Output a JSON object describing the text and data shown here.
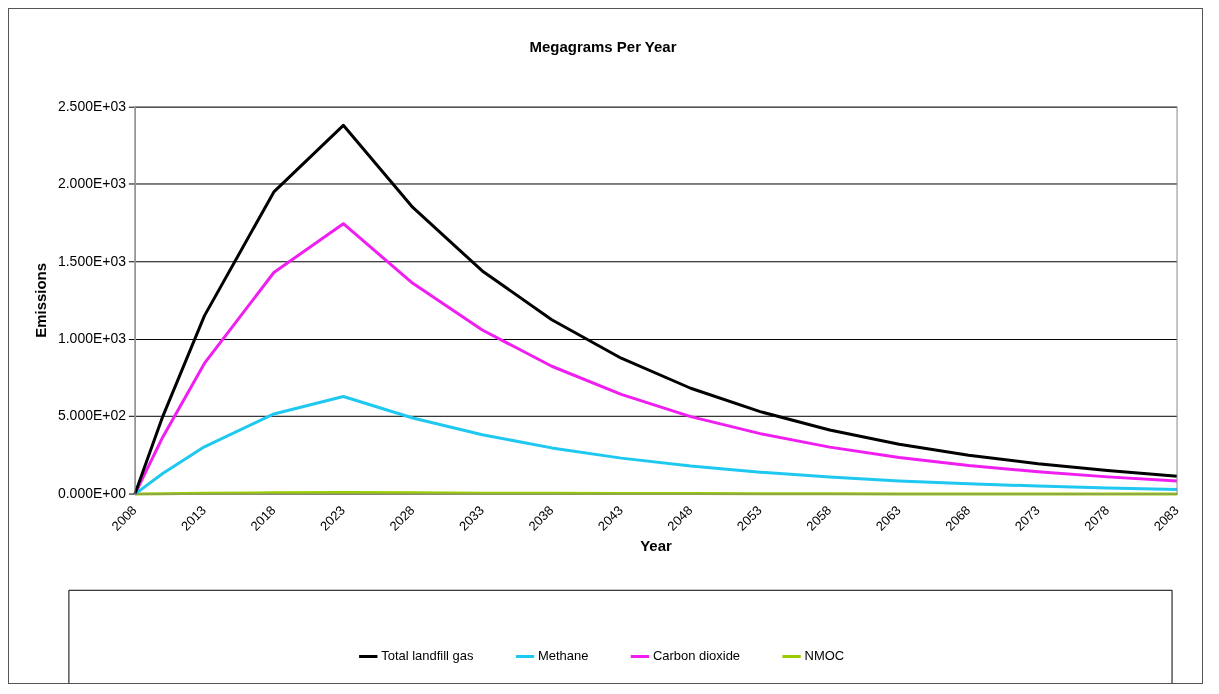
{
  "chart_data": {
    "type": "line",
    "title": "Megagrams Per Year",
    "xlabel": "Year",
    "ylabel": "Emissions",
    "x": [
      2008,
      2010,
      2013,
      2018,
      2023,
      2028,
      2033,
      2038,
      2043,
      2048,
      2053,
      2058,
      2063,
      2068,
      2073,
      2078,
      2083
    ],
    "series": [
      {
        "name": "Total landfill gas",
        "color": "#000000",
        "values": [
          0,
          500,
          1150,
          1950,
          2380,
          1850,
          1440,
          1125,
          877,
          683,
          532,
          414,
          322,
          251,
          196,
          152,
          115
        ]
      },
      {
        "name": "Methane",
        "color": "#1fc8f0",
        "values": [
          0,
          133,
          305,
          517,
          630,
          491,
          383,
          298,
          232,
          181,
          141,
          110,
          85,
          66,
          52,
          40,
          30
        ]
      },
      {
        "name": "Carbon dioxide",
        "color": "#f01ef0",
        "values": [
          0,
          367,
          843,
          1430,
          1745,
          1360,
          1059,
          825,
          643,
          500,
          390,
          303,
          236,
          184,
          144,
          111,
          85
        ]
      },
      {
        "name": "NMOC",
        "color": "#99cc00",
        "values": [
          0,
          2,
          5,
          8,
          10,
          8,
          6,
          5,
          4,
          3,
          2,
          2,
          1,
          1,
          1,
          1,
          1
        ]
      }
    ],
    "xlim": [
      2008,
      2083
    ],
    "xticks": [
      2008,
      2013,
      2018,
      2023,
      2028,
      2033,
      2038,
      2043,
      2048,
      2053,
      2058,
      2063,
      2068,
      2073,
      2078,
      2083
    ],
    "ylim": [
      0,
      2500
    ],
    "yticks": [
      {
        "value": 0,
        "label": "0.000E+00"
      },
      {
        "value": 500,
        "label": "5.000E+02"
      },
      {
        "value": 1000,
        "label": "1.000E+03"
      },
      {
        "value": 1500,
        "label": "1.500E+03"
      },
      {
        "value": 2000,
        "label": "2.000E+03"
      },
      {
        "value": 2500,
        "label": "2.500E+03"
      }
    ],
    "grid": "y",
    "legend": "bottom",
    "marker": "none",
    "line_style": "solid"
  }
}
